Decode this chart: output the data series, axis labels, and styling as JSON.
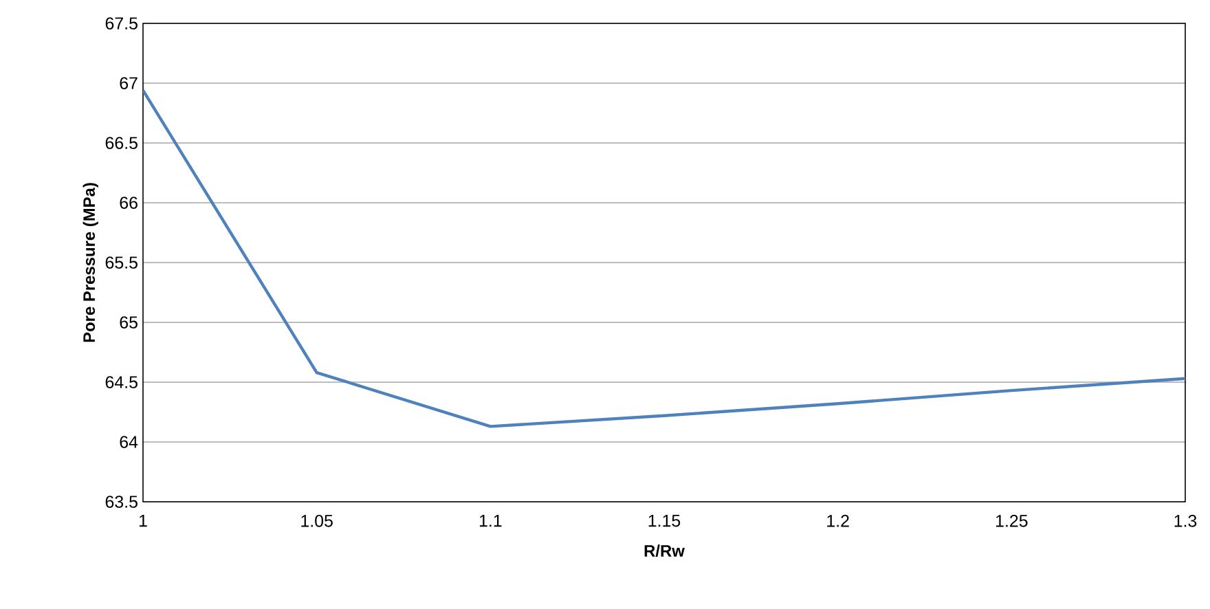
{
  "chart_data": {
    "type": "line",
    "xlabel": "R/Rw",
    "ylabel": "Pore Pressure (MPa)",
    "x": [
      1,
      1.05,
      1.1,
      1.15,
      1.2,
      1.25,
      1.3
    ],
    "series": [
      {
        "color": "#4f81bd",
        "values": [
          66.94,
          64.58,
          64.13,
          64.22,
          64.32,
          64.43,
          64.53
        ]
      }
    ],
    "xlim": [
      1,
      1.3
    ],
    "xticks": [
      1,
      1.05,
      1.1,
      1.15,
      1.2,
      1.25,
      1.3
    ],
    "ylim": [
      63.5,
      67.5
    ],
    "yticks": [
      63.5,
      64,
      64.5,
      65,
      65.5,
      66,
      66.5,
      67,
      67.5
    ],
    "grid": "y",
    "marker": "none",
    "line_style": "solid"
  }
}
